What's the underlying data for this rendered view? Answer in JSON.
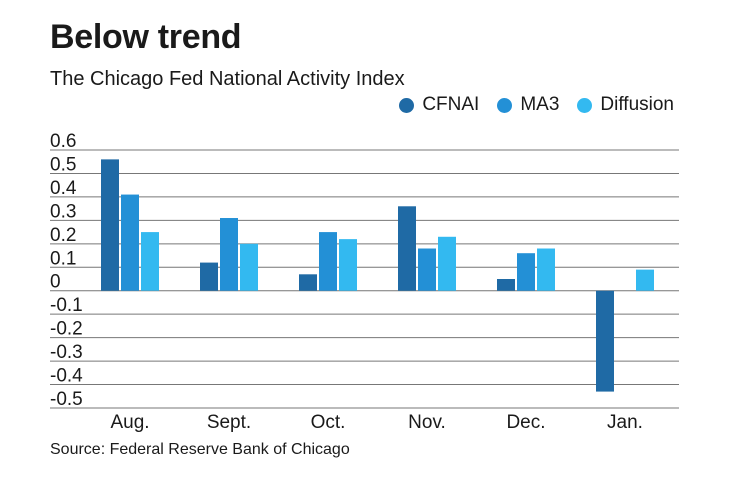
{
  "header": {
    "title": "Below trend",
    "subtitle": "The Chicago Fed National Activity Index"
  },
  "footer": {
    "source": "Source: Federal Reserve Bank of Chicago"
  },
  "colors": {
    "CFNAI": "#1f6aa5",
    "MA3": "#2390d6",
    "Diffusion": "#33b9f0",
    "grid": "#777777"
  },
  "chart_data": {
    "type": "bar",
    "categories": [
      "Aug.",
      "Sept.",
      "Oct.",
      "Nov.",
      "Dec.",
      "Jan."
    ],
    "series": [
      {
        "name": "CFNAI",
        "values": [
          0.56,
          0.12,
          0.07,
          0.36,
          0.05,
          -0.43
        ]
      },
      {
        "name": "MA3",
        "values": [
          0.41,
          0.31,
          0.25,
          0.18,
          0.16,
          null
        ]
      },
      {
        "name": "Diffusion",
        "values": [
          0.25,
          0.2,
          0.22,
          0.23,
          0.18,
          0.09
        ]
      }
    ],
    "ylim": [
      -0.5,
      0.6
    ],
    "yticks": [
      0.6,
      0.5,
      0.4,
      0.3,
      0.2,
      0.1,
      0,
      -0.1,
      -0.2,
      -0.3,
      -0.4,
      -0.5
    ],
    "ytick_labels": [
      "0.6",
      "0.5",
      "0.4",
      "0.3",
      "0.2",
      "0.1",
      "0",
      "-0.1",
      "-0.2",
      "-0.3",
      "-0.4",
      "-0.5"
    ],
    "grid": true,
    "legend_position": "top-right"
  }
}
